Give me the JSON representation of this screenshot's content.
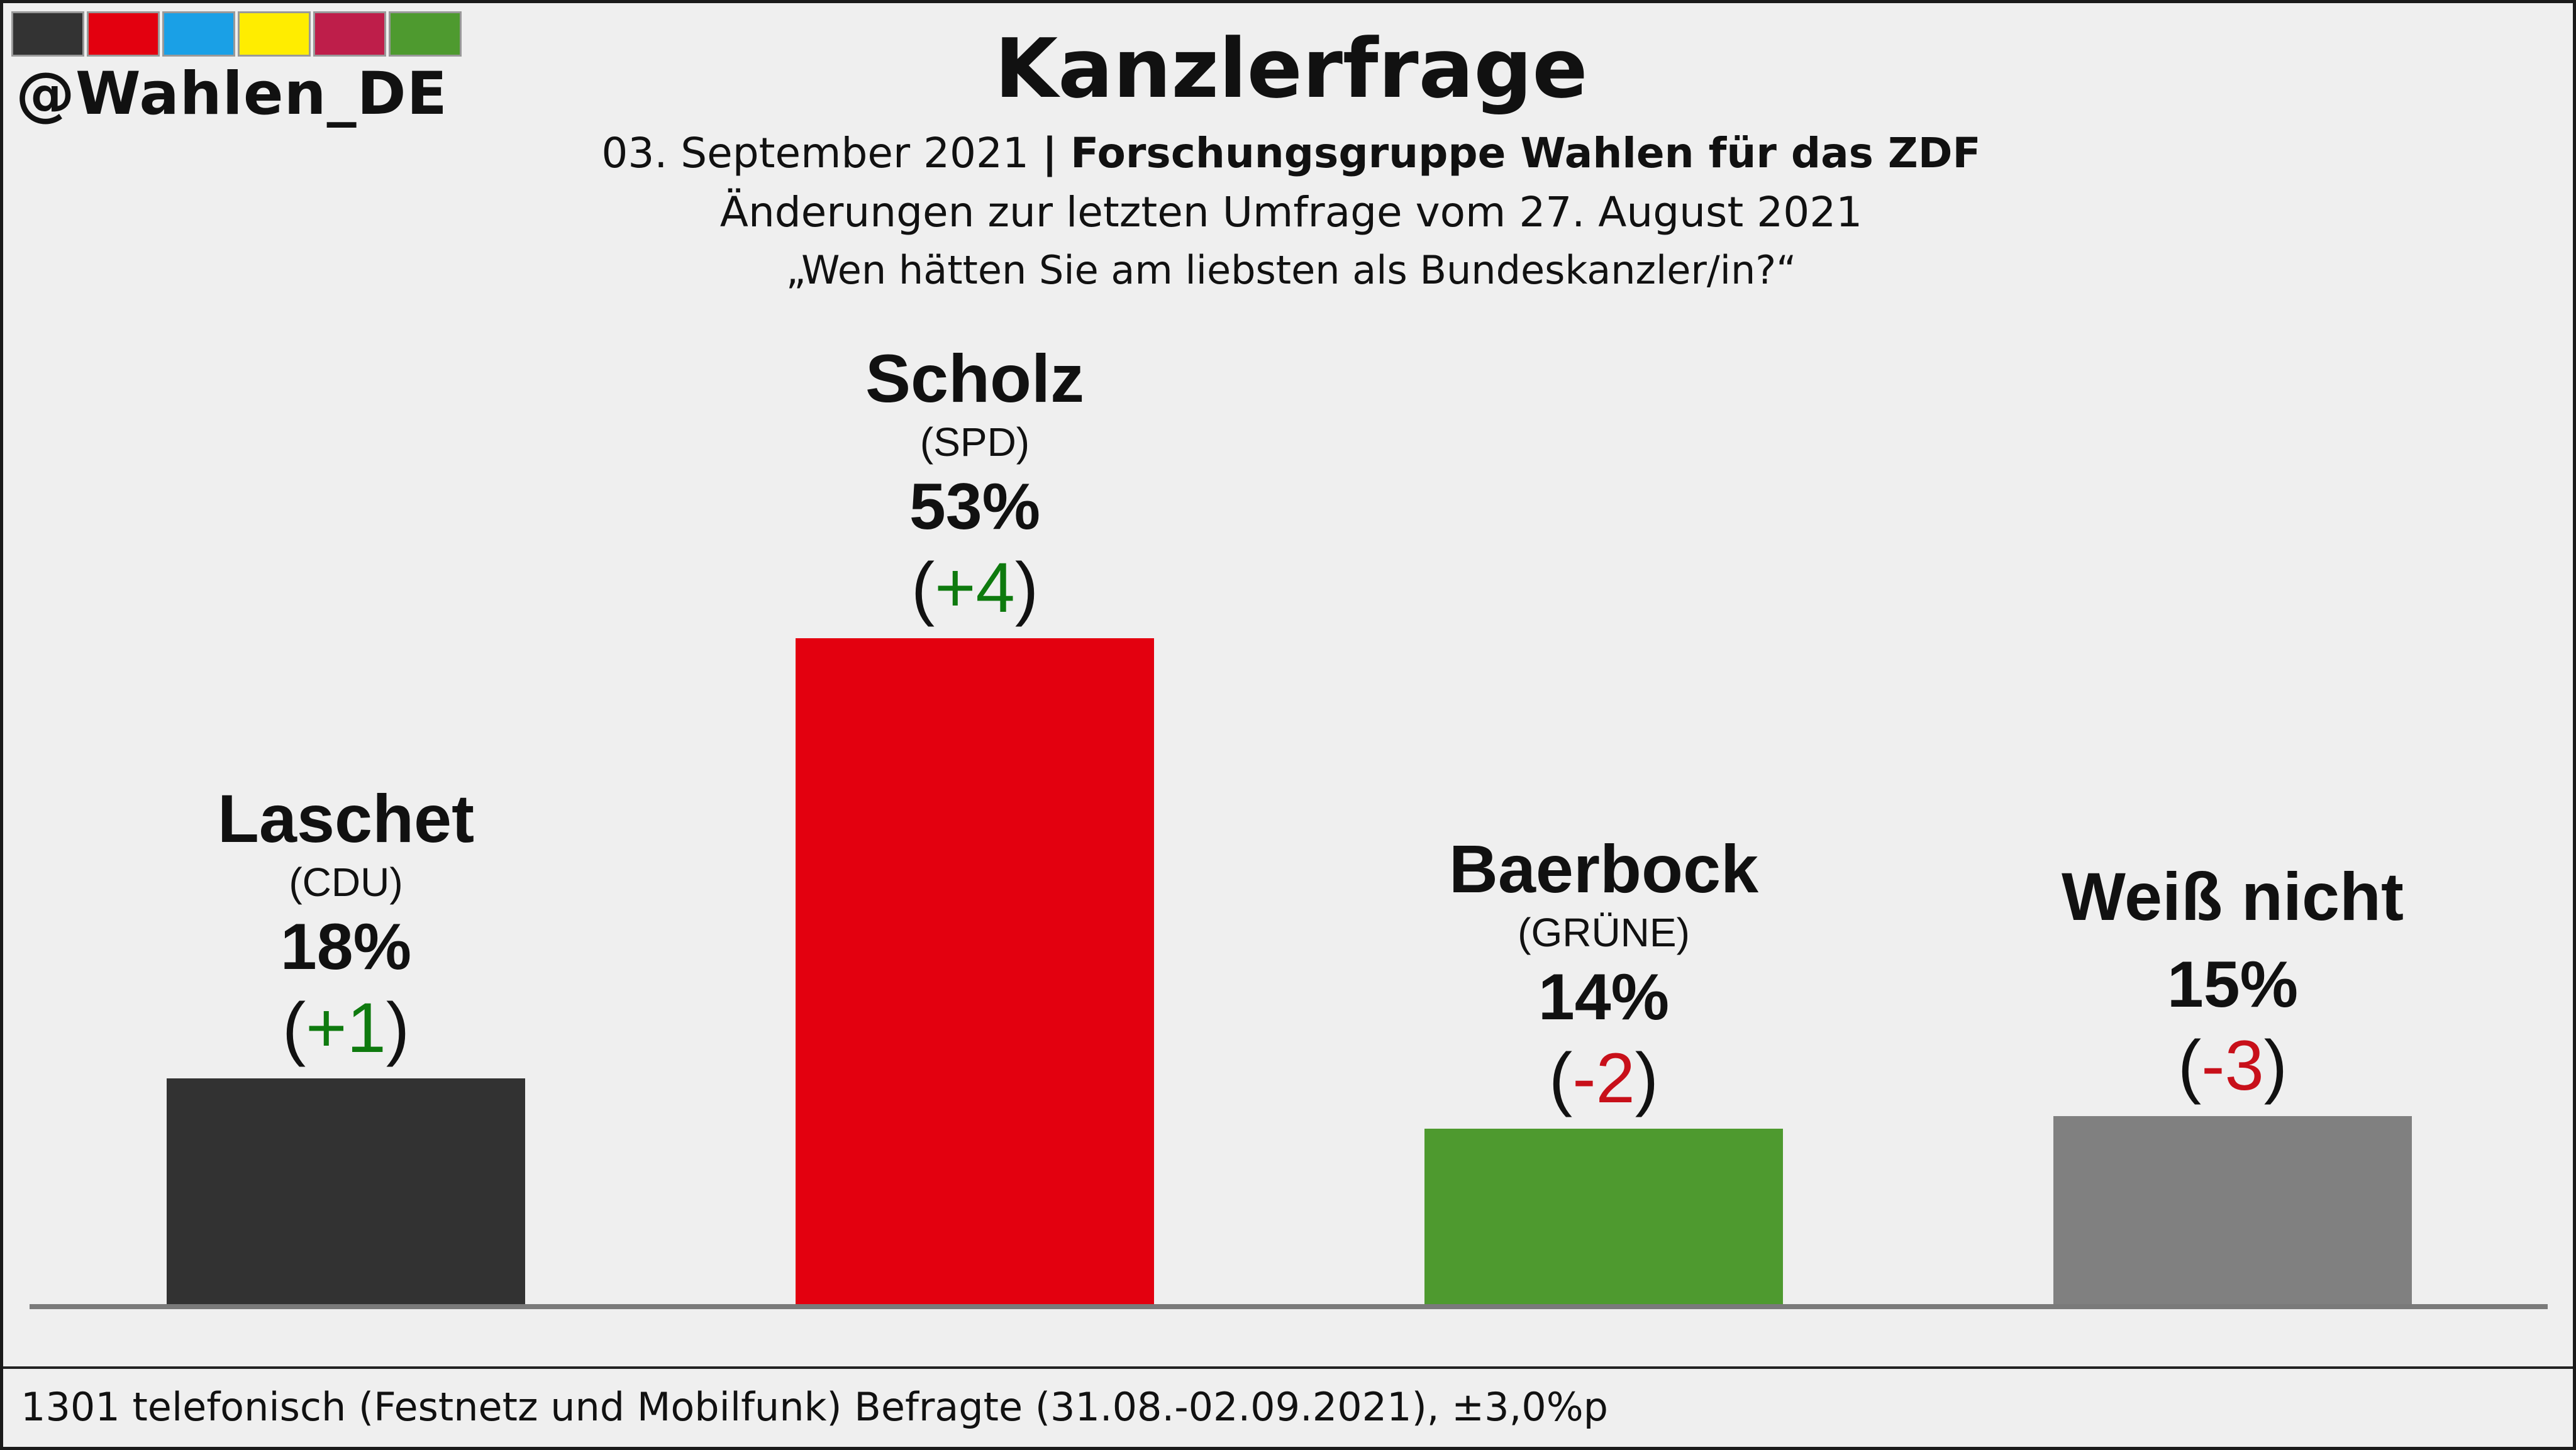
{
  "branding": {
    "handle": "@Wahlen_DE",
    "strip_colors": [
      "#333333",
      "#e3000f",
      "#1aa0e6",
      "#ffed00",
      "#be1e4a",
      "#4e9a2f"
    ]
  },
  "header": {
    "title": "Kanzlerfrage",
    "date": "03. September 2021",
    "separator": "|",
    "institute": "Forschungsgruppe Wahlen für das ZDF",
    "comparison": "Änderungen zur letzten Umfrage vom 27. August 2021",
    "question": "„Wen hätten Sie am liebsten als Bundeskanzler/in?“"
  },
  "chart_data": {
    "type": "bar",
    "title": "Kanzlerfrage",
    "categories": [
      "Laschet",
      "Scholz",
      "Baerbock",
      "Weiß nicht"
    ],
    "parties": [
      "(CDU)",
      "(SPD)",
      "(GRÜNE)",
      ""
    ],
    "values": [
      18,
      53,
      14,
      15
    ],
    "value_labels": [
      "18%",
      "53%",
      "14%",
      "15%"
    ],
    "changes": [
      1,
      4,
      -2,
      -3
    ],
    "change_labels": [
      "+1",
      "+4",
      "-2",
      "-3"
    ],
    "colors": [
      "#323232",
      "#e3000f",
      "#4e9a2f",
      "#808080"
    ],
    "change_colors": {
      "positive": "#0e7a0e",
      "negative": "#c8101a"
    },
    "grid": false,
    "legend": "none"
  },
  "footer": {
    "note": "1301 telefonisch (Festnetz und Mobilfunk) Befragte (31.08.-02.09.2021), ±3,0%p"
  }
}
